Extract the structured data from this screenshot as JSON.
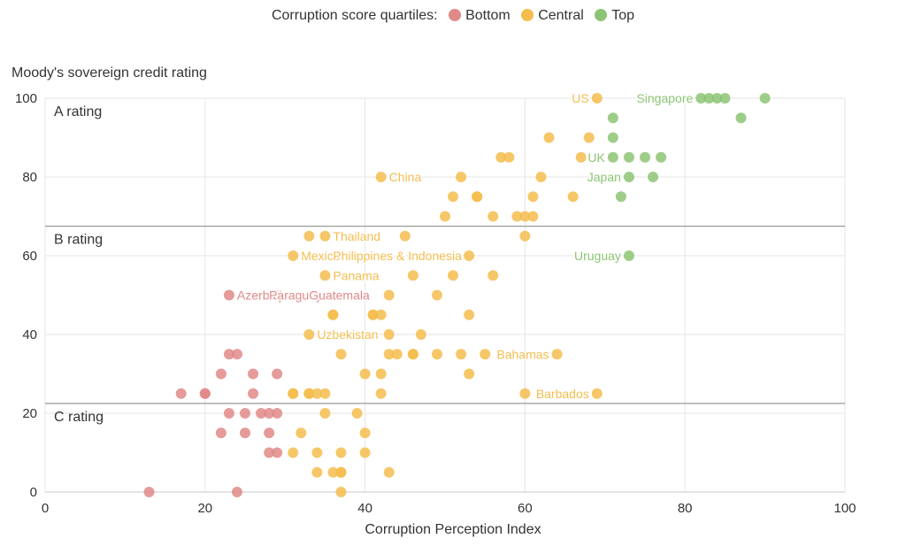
{
  "chart_data": {
    "type": "scatter",
    "legend": {
      "title": "Corruption score quartiles:",
      "position": "top-center",
      "items": [
        {
          "label": "Bottom",
          "color": "#e08a87"
        },
        {
          "label": "Central",
          "color": "#f4bd4e"
        },
        {
          "label": "Top",
          "color": "#8cc474"
        }
      ]
    },
    "xlabel": "Corruption Perception Index",
    "ylabel": "Moody's sovereign credit rating",
    "xlim": [
      0,
      100
    ],
    "ylim": [
      0,
      100
    ],
    "xticks": [
      0,
      20,
      40,
      60,
      80,
      100
    ],
    "yticks": [
      0,
      20,
      40,
      60,
      80,
      100
    ],
    "grid": true,
    "bands": [
      {
        "label": "A rating",
        "top": 100,
        "line": 67.5
      },
      {
        "label": "B rating",
        "top": 67.5,
        "line": 22.5
      },
      {
        "label": "C rating",
        "top": 22.5
      }
    ],
    "series": [
      {
        "name": "Bottom",
        "color": "#e08a87",
        "points": [
          [
            13,
            0
          ],
          [
            24,
            0
          ],
          [
            17,
            25
          ],
          [
            20,
            25
          ],
          [
            20,
            25
          ],
          [
            26,
            25
          ],
          [
            22,
            30
          ],
          [
            26,
            30
          ],
          [
            29,
            30
          ],
          [
            23,
            35
          ],
          [
            24,
            35
          ],
          [
            23,
            20
          ],
          [
            25,
            20
          ],
          [
            27,
            20
          ],
          [
            28,
            20
          ],
          [
            29,
            20
          ],
          [
            22,
            15
          ],
          [
            25,
            15
          ],
          [
            28,
            15
          ],
          [
            28,
            10
          ],
          [
            29,
            10
          ],
          [
            23,
            50
          ]
        ]
      },
      {
        "name": "Central",
        "color": "#f4bd4e",
        "points": [
          [
            37,
            0
          ],
          [
            34,
            5
          ],
          [
            36,
            5
          ],
          [
            37,
            5
          ],
          [
            37,
            5
          ],
          [
            43,
            5
          ],
          [
            31,
            10
          ],
          [
            34,
            10
          ],
          [
            37,
            10
          ],
          [
            40,
            10
          ],
          [
            32,
            15
          ],
          [
            40,
            15
          ],
          [
            35,
            20
          ],
          [
            39,
            20
          ],
          [
            31,
            25
          ],
          [
            31,
            25
          ],
          [
            33,
            25
          ],
          [
            33,
            25
          ],
          [
            34,
            25
          ],
          [
            35,
            25
          ],
          [
            42,
            25
          ],
          [
            60,
            25
          ],
          [
            69,
            25
          ],
          [
            40,
            30
          ],
          [
            42,
            30
          ],
          [
            53,
            30
          ],
          [
            37,
            35
          ],
          [
            43,
            35
          ],
          [
            44,
            35
          ],
          [
            46,
            35
          ],
          [
            46,
            35
          ],
          [
            49,
            35
          ],
          [
            52,
            35
          ],
          [
            55,
            35
          ],
          [
            64,
            35
          ],
          [
            33,
            40
          ],
          [
            43,
            40
          ],
          [
            47,
            40
          ],
          [
            36,
            45
          ],
          [
            36,
            45
          ],
          [
            41,
            45
          ],
          [
            41,
            45
          ],
          [
            42,
            45
          ],
          [
            53,
            45
          ],
          [
            43,
            50
          ],
          [
            49,
            50
          ],
          [
            35,
            55
          ],
          [
            46,
            55
          ],
          [
            51,
            55
          ],
          [
            56,
            55
          ],
          [
            31,
            60
          ],
          [
            53,
            60
          ],
          [
            33,
            65
          ],
          [
            35,
            65
          ],
          [
            45,
            65
          ],
          [
            60,
            65
          ],
          [
            50,
            70
          ],
          [
            56,
            70
          ],
          [
            59,
            70
          ],
          [
            60,
            70
          ],
          [
            61,
            70
          ],
          [
            51,
            75
          ],
          [
            54,
            75
          ],
          [
            54,
            75
          ],
          [
            61,
            75
          ],
          [
            66,
            75
          ],
          [
            42,
            80
          ],
          [
            52,
            80
          ],
          [
            62,
            80
          ],
          [
            57,
            85
          ],
          [
            58,
            85
          ],
          [
            67,
            85
          ],
          [
            63,
            90
          ],
          [
            68,
            90
          ],
          [
            69,
            100
          ]
        ]
      },
      {
        "name": "Top",
        "color": "#8cc474",
        "points": [
          [
            73,
            60
          ],
          [
            72,
            75
          ],
          [
            73,
            80
          ],
          [
            76,
            80
          ],
          [
            71,
            85
          ],
          [
            73,
            85
          ],
          [
            75,
            85
          ],
          [
            77,
            85
          ],
          [
            71,
            90
          ],
          [
            71,
            95
          ],
          [
            87,
            95
          ],
          [
            82,
            100
          ],
          [
            83,
            100
          ],
          [
            84,
            100
          ],
          [
            85,
            100
          ],
          [
            90,
            100
          ]
        ]
      }
    ],
    "annotations": [
      {
        "text": "US",
        "x": 69,
        "y": 100,
        "color": "#f4bd4e",
        "anchor": "end"
      },
      {
        "text": "Singapore",
        "x": 82,
        "y": 100,
        "color": "#8cc474",
        "anchor": "end"
      },
      {
        "text": "UK",
        "x": 71,
        "y": 85,
        "color": "#8cc474",
        "anchor": "end"
      },
      {
        "text": "Japan",
        "x": 73,
        "y": 80,
        "color": "#8cc474",
        "anchor": "end"
      },
      {
        "text": "China",
        "x": 42,
        "y": 80,
        "color": "#f4bd4e",
        "anchor": "start"
      },
      {
        "text": "Thailand",
        "x": 35,
        "y": 65,
        "color": "#f4bd4e",
        "anchor": "start"
      },
      {
        "text": "Mexico",
        "x": 31,
        "y": 60,
        "color": "#f4bd4e",
        "anchor": "start"
      },
      {
        "text": "Philippines & Indonesia",
        "x": 35,
        "y": 60,
        "color": "#f4bd4e",
        "anchor": "start"
      },
      {
        "text": "Uruguay",
        "x": 73,
        "y": 60,
        "color": "#8cc474",
        "anchor": "end"
      },
      {
        "text": "Panama",
        "x": 35,
        "y": 55,
        "color": "#f4bd4e",
        "anchor": "start"
      },
      {
        "text": "Azerbaijan",
        "x": 23,
        "y": 50,
        "color": "#e08a87",
        "anchor": "start"
      },
      {
        "text": "Paraguay",
        "x": 27,
        "y": 50,
        "color": "#e08a87",
        "anchor": "start"
      },
      {
        "text": "Guatemala",
        "x": 32,
        "y": 50,
        "color": "#e08a87",
        "anchor": "start"
      },
      {
        "text": "Uzbekistan",
        "x": 33,
        "y": 40,
        "color": "#f4bd4e",
        "anchor": "start"
      },
      {
        "text": "Bahamas",
        "x": 64,
        "y": 35,
        "color": "#f4bd4e",
        "anchor": "end"
      },
      {
        "text": "Barbados",
        "x": 69,
        "y": 25,
        "color": "#f4bd4e",
        "anchor": "end"
      }
    ]
  }
}
